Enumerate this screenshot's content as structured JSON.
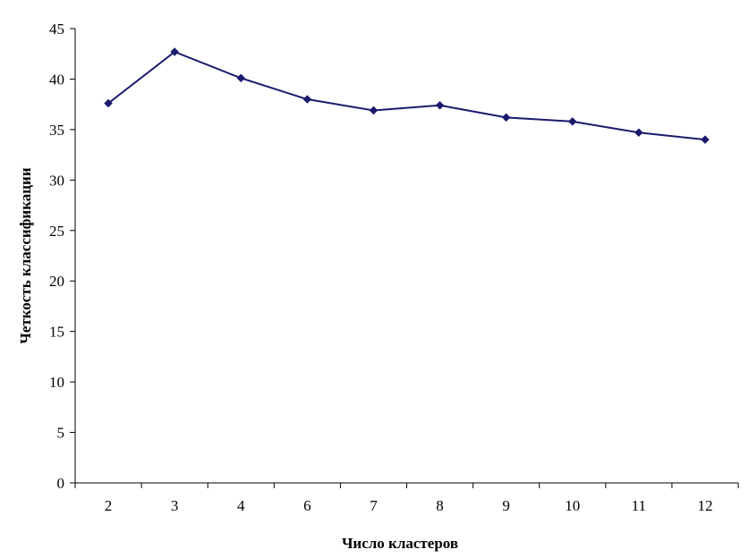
{
  "chart_data": {
    "type": "line",
    "categories": [
      "2",
      "3",
      "4",
      "6",
      "7",
      "8",
      "9",
      "10",
      "11",
      "12"
    ],
    "series": [
      {
        "values": [
          37.6,
          42.7,
          40.1,
          38.0,
          36.9,
          37.4,
          36.2,
          35.8,
          34.7,
          34.0
        ]
      }
    ],
    "xlabel": "Число кластеров",
    "ylabel": "Четкость классификации",
    "ylim": [
      0,
      45
    ],
    "yticks": [
      "0",
      "5",
      "10",
      "15",
      "20",
      "25",
      "30",
      "35",
      "40",
      "45"
    ],
    "grid": false,
    "legend": "none",
    "line_color": "#1a1a6e",
    "marker": "diamond"
  }
}
